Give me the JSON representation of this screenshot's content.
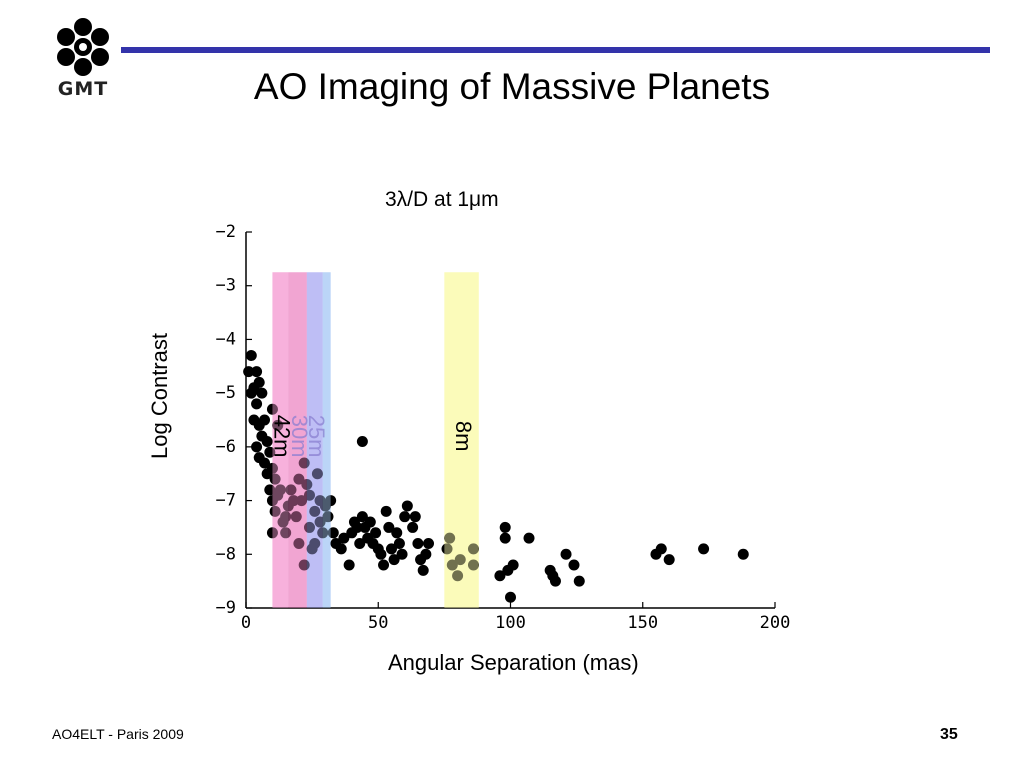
{
  "logo": {
    "text": "GMT",
    "icon": "gmt-seven-mirror-logo"
  },
  "slide": {
    "title": "AO Imaging of Massive Planets",
    "footer_left": "AO4ELT - Paris 2009",
    "page_number": "35"
  },
  "colors": {
    "rule": "#3333aa",
    "points": "#000000"
  },
  "chart_data": {
    "type": "scatter",
    "title": "3λ/D at 1μm",
    "xlabel": "Angular Separation (mas)",
    "ylabel": "Log Contrast",
    "xlim": [
      0,
      200
    ],
    "ylim": [
      -9,
      -2
    ],
    "xticks": [
      0,
      50,
      100,
      150,
      200
    ],
    "yticks": [
      -2,
      -3,
      -4,
      -5,
      -6,
      -7,
      -8,
      -9
    ],
    "grid": false,
    "bands": [
      {
        "label": "42m",
        "x_range": [
          10,
          16
        ],
        "y_range": [
          -9,
          -2.75
        ],
        "color": "#f59cd2",
        "opacity": 0.6
      },
      {
        "label": "30m",
        "x_range": [
          16,
          23
        ],
        "y_range": [
          -9,
          -2.75
        ],
        "color": "#ea7fbf",
        "opacity": 0.45
      },
      {
        "label": "25m",
        "x_range": [
          23,
          29
        ],
        "y_range": [
          -9,
          -2.75
        ],
        "color": "#a9a8f2",
        "opacity": 0.55
      },
      {
        "label": "",
        "x_range": [
          29,
          32
        ],
        "y_range": [
          -9,
          -2.75
        ],
        "color": "#a8caf5",
        "opacity": 0.6
      },
      {
        "label": "8m",
        "x_range": [
          75,
          88
        ],
        "y_range": [
          -9,
          -2.75
        ],
        "color": "#fbfab0",
        "opacity": 0.75
      }
    ],
    "series": [
      {
        "points": [
          [
            1,
            -4.6
          ],
          [
            2,
            -4.3
          ],
          [
            3,
            -4.9
          ],
          [
            2,
            -5.0
          ],
          [
            4,
            -4.6
          ],
          [
            5,
            -4.8
          ],
          [
            4,
            -5.2
          ],
          [
            6,
            -5.0
          ],
          [
            3,
            -5.5
          ],
          [
            5,
            -5.6
          ],
          [
            7,
            -5.5
          ],
          [
            6,
            -5.8
          ],
          [
            4,
            -6.0
          ],
          [
            8,
            -5.9
          ],
          [
            5,
            -6.2
          ],
          [
            7,
            -6.3
          ],
          [
            9,
            -6.1
          ],
          [
            8,
            -6.5
          ],
          [
            10,
            -6.4
          ],
          [
            9,
            -6.8
          ],
          [
            11,
            -6.6
          ],
          [
            10,
            -7.0
          ],
          [
            12,
            -6.9
          ],
          [
            11,
            -7.2
          ],
          [
            10,
            -5.3
          ],
          [
            12,
            -5.6
          ],
          [
            13,
            -6.8
          ],
          [
            14,
            -7.4
          ],
          [
            15,
            -7.3
          ],
          [
            16,
            -7.1
          ],
          [
            17,
            -6.8
          ],
          [
            18,
            -7.0
          ],
          [
            15,
            -7.6
          ],
          [
            10,
            -7.6
          ],
          [
            19,
            -7.3
          ],
          [
            20,
            -6.6
          ],
          [
            21,
            -7.0
          ],
          [
            22,
            -6.3
          ],
          [
            23,
            -6.7
          ],
          [
            24,
            -6.9
          ],
          [
            20,
            -7.8
          ],
          [
            22,
            -8.2
          ],
          [
            24,
            -7.5
          ],
          [
            25,
            -7.9
          ],
          [
            26,
            -7.2
          ],
          [
            27,
            -6.5
          ],
          [
            28,
            -7.0
          ],
          [
            28,
            -7.4
          ],
          [
            30,
            -7.1
          ],
          [
            31,
            -7.3
          ],
          [
            26,
            -7.8
          ],
          [
            29,
            -7.6
          ],
          [
            32,
            -7.0
          ],
          [
            33,
            -7.6
          ],
          [
            34,
            -7.8
          ],
          [
            36,
            -7.9
          ],
          [
            37,
            -7.7
          ],
          [
            39,
            -8.2
          ],
          [
            40,
            -7.6
          ],
          [
            41,
            -7.4
          ],
          [
            42,
            -7.5
          ],
          [
            43,
            -7.8
          ],
          [
            44,
            -7.3
          ],
          [
            45,
            -7.5
          ],
          [
            46,
            -7.7
          ],
          [
            47,
            -7.4
          ],
          [
            48,
            -7.8
          ],
          [
            49,
            -7.6
          ],
          [
            50,
            -7.9
          ],
          [
            51,
            -8.0
          ],
          [
            52,
            -8.2
          ],
          [
            53,
            -7.2
          ],
          [
            54,
            -7.5
          ],
          [
            55,
            -7.9
          ],
          [
            56,
            -8.1
          ],
          [
            57,
            -7.6
          ],
          [
            58,
            -7.8
          ],
          [
            59,
            -8.0
          ],
          [
            60,
            -7.3
          ],
          [
            61,
            -7.1
          ],
          [
            63,
            -7.5
          ],
          [
            64,
            -7.3
          ],
          [
            65,
            -7.8
          ],
          [
            66,
            -8.1
          ],
          [
            67,
            -8.3
          ],
          [
            68,
            -8.0
          ],
          [
            69,
            -7.8
          ],
          [
            44,
            -5.9
          ],
          [
            76,
            -7.9
          ],
          [
            77,
            -7.7
          ],
          [
            78,
            -8.2
          ],
          [
            80,
            -8.4
          ],
          [
            81,
            -8.1
          ],
          [
            86,
            -7.9
          ],
          [
            86,
            -8.2
          ],
          [
            96,
            -8.4
          ],
          [
            98,
            -7.5
          ],
          [
            98,
            -7.7
          ],
          [
            99,
            -8.3
          ],
          [
            100,
            -8.8
          ],
          [
            101,
            -8.2
          ],
          [
            107,
            -7.7
          ],
          [
            115,
            -8.3
          ],
          [
            116,
            -8.4
          ],
          [
            117,
            -8.5
          ],
          [
            121,
            -8.0
          ],
          [
            124,
            -8.2
          ],
          [
            126,
            -8.5
          ],
          [
            155,
            -8.0
          ],
          [
            157,
            -7.9
          ],
          [
            160,
            -8.1
          ],
          [
            173,
            -7.9
          ],
          [
            188,
            -8.0
          ]
        ]
      }
    ]
  }
}
